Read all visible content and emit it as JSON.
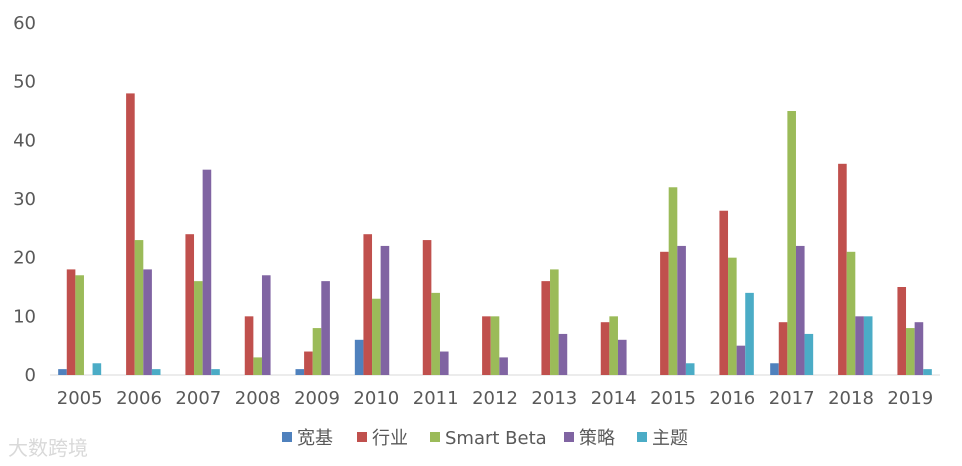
{
  "chart_data": {
    "type": "bar",
    "categories": [
      "2005",
      "2006",
      "2007",
      "2008",
      "2009",
      "2010",
      "2011",
      "2012",
      "2013",
      "2014",
      "2015",
      "2016",
      "2017",
      "2018",
      "2019"
    ],
    "ylim": [
      0,
      60
    ],
    "yticks": [
      0,
      10,
      20,
      30,
      40,
      50,
      60
    ],
    "grid": false,
    "legend_position": "bottom",
    "series": [
      {
        "name": "宽基",
        "color": "#4f81bd",
        "values": [
          1,
          0,
          0,
          0,
          1,
          6,
          0,
          0,
          0,
          0,
          0,
          0,
          2,
          0,
          0
        ]
      },
      {
        "name": "行业",
        "color": "#c0504d",
        "values": [
          18,
          48,
          24,
          10,
          4,
          24,
          23,
          10,
          16,
          9,
          21,
          28,
          9,
          36,
          15
        ]
      },
      {
        "name": "Smart Beta",
        "color": "#9bbb59",
        "values": [
          17,
          23,
          16,
          3,
          8,
          13,
          14,
          10,
          18,
          10,
          32,
          20,
          45,
          21,
          8
        ]
      },
      {
        "name": "策略",
        "color": "#8064a2",
        "values": [
          0,
          18,
          35,
          17,
          16,
          22,
          4,
          3,
          7,
          6,
          22,
          5,
          22,
          10,
          9
        ]
      },
      {
        "name": "主题",
        "color": "#4bacc6",
        "values": [
          2,
          1,
          1,
          0,
          0,
          0,
          0,
          0,
          0,
          0,
          2,
          14,
          7,
          10,
          1
        ]
      }
    ]
  },
  "watermark": {
    "text": "大数跨境"
  }
}
